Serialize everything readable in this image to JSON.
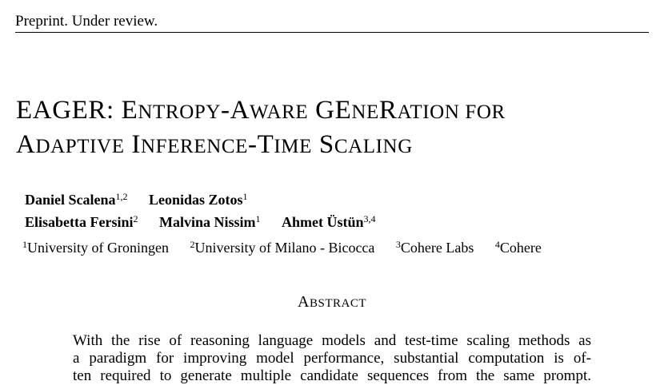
{
  "header": {
    "note": "Preprint. Under review."
  },
  "title": {
    "line1": [
      {
        "big": "EAGER",
        "small": ""
      },
      {
        "big": ": E",
        "small": "NTROPY"
      },
      {
        "big": "-A",
        "small": "WARE"
      },
      {
        "big": " GE",
        "small": "NE"
      },
      {
        "big": "R",
        "small": "ATION FOR"
      }
    ],
    "line2": [
      {
        "big": "A",
        "small": "DAPTIVE"
      },
      {
        "big": " I",
        "small": "NFERENCE"
      },
      {
        "big": "-T",
        "small": "IME"
      },
      {
        "big": " S",
        "small": "CALING"
      }
    ]
  },
  "authors": {
    "row1": [
      {
        "name": "Daniel Scalena",
        "sup": "1,2"
      },
      {
        "name": "Leonidas Zotos",
        "sup": "1"
      }
    ],
    "row2": [
      {
        "name": "Elisabetta Fersini",
        "sup": "2"
      },
      {
        "name": "Malvina Nissim",
        "sup": "1"
      },
      {
        "name": "Ahmet Üstün",
        "sup": "3,4"
      }
    ],
    "affiliations": [
      {
        "sup": "1",
        "name": "University of Groningen"
      },
      {
        "sup": "2",
        "name": "University of Milano - Bicocca"
      },
      {
        "sup": "3",
        "name": "Cohere Labs"
      },
      {
        "sup": "4",
        "name": "Cohere"
      }
    ]
  },
  "abstract": {
    "heading_big": "A",
    "heading_small": "BSTRACT",
    "lines": [
      "With the rise of reasoning language models and test-time scaling methods as",
      "a paradigm for improving model performance, substantial computation is of-",
      "ten required to generate multiple candidate sequences from the same prompt."
    ]
  }
}
